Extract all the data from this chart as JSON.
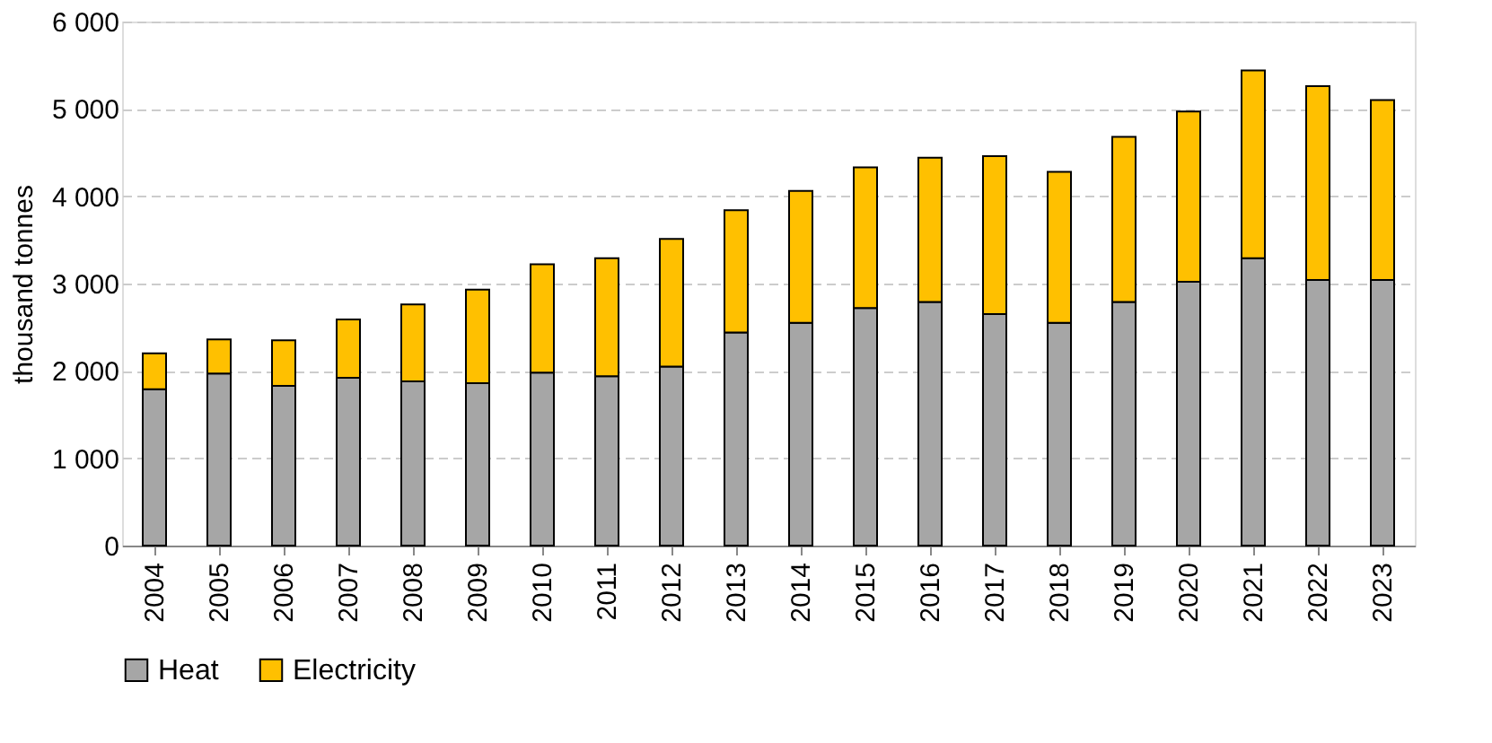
{
  "chart_data": {
    "type": "bar",
    "stacked": true,
    "ylabel": "thousand tonnes",
    "categories": [
      "2004",
      "2005",
      "2006",
      "2007",
      "2008",
      "2009",
      "2010",
      "2011",
      "2012",
      "2013",
      "2014",
      "2015",
      "2016",
      "2017",
      "2018",
      "2019",
      "2020",
      "2021",
      "2022",
      "2023"
    ],
    "series": [
      {
        "name": "Heat",
        "color": "#a6a6a6",
        "values": [
          1790,
          1970,
          1830,
          1920,
          1880,
          1860,
          1980,
          1940,
          2050,
          2440,
          2550,
          2720,
          2790,
          2650,
          2550,
          2790,
          3020,
          3290,
          3040,
          3040
        ]
      },
      {
        "name": "Electricity",
        "color": "#ffc000",
        "values": [
          410,
          390,
          520,
          670,
          880,
          1070,
          1240,
          1350,
          1460,
          1400,
          1510,
          1610,
          1650,
          1810,
          1730,
          1890,
          1950,
          2150,
          2220,
          2060
        ]
      }
    ],
    "ylim": [
      0,
      6000
    ],
    "yticks": [
      0,
      {
        "value": 1000,
        "label": "1 000"
      },
      {
        "value": 2000,
        "label": "2 000"
      },
      {
        "value": 3000,
        "label": "3 000"
      },
      {
        "value": 4000,
        "label": "4 000"
      },
      {
        "value": 5000,
        "label": "5 000"
      },
      {
        "value": 6000,
        "label": "6 000"
      }
    ],
    "grid": "y",
    "legend": "bottom"
  }
}
